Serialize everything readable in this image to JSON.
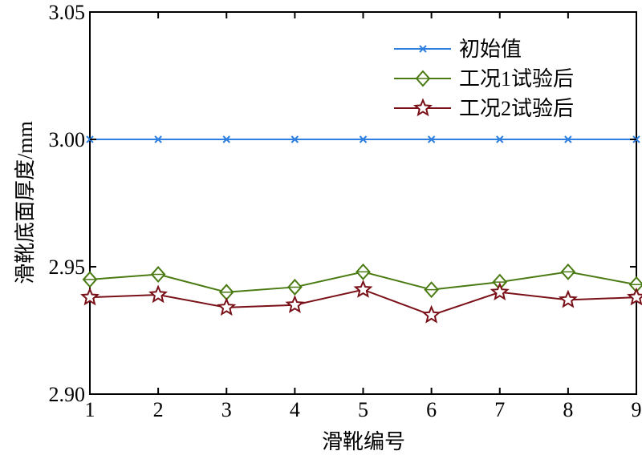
{
  "chart_data": {
    "type": "line",
    "title": "",
    "xlabel": "滑靴编号",
    "ylabel": "滑靴底面厚度/mm",
    "x": [
      1,
      2,
      3,
      4,
      5,
      6,
      7,
      8,
      9
    ],
    "xticks": [
      "1",
      "2",
      "3",
      "4",
      "5",
      "6",
      "7",
      "8",
      "9"
    ],
    "yticks": [
      "2.90",
      "2.95",
      "3.00",
      "3.05"
    ],
    "ylim": [
      2.9,
      3.05
    ],
    "xlim": [
      1,
      9
    ],
    "grid": false,
    "legend_position": "upper right",
    "series": [
      {
        "name": "初始值",
        "color": "#2e7fe0",
        "marker": "x",
        "values": [
          3.0,
          3.0,
          3.0,
          3.0,
          3.0,
          3.0,
          3.0,
          3.0,
          3.0
        ]
      },
      {
        "name": "工况1试验后",
        "color": "#4a7a12",
        "marker": "diamond",
        "values": [
          2.945,
          2.947,
          2.94,
          2.942,
          2.948,
          2.941,
          2.944,
          2.948,
          2.943
        ]
      },
      {
        "name": "工况2试验后",
        "color": "#7a1018",
        "marker": "star",
        "values": [
          2.938,
          2.939,
          2.934,
          2.935,
          2.941,
          2.931,
          2.94,
          2.937,
          2.938
        ]
      }
    ]
  }
}
